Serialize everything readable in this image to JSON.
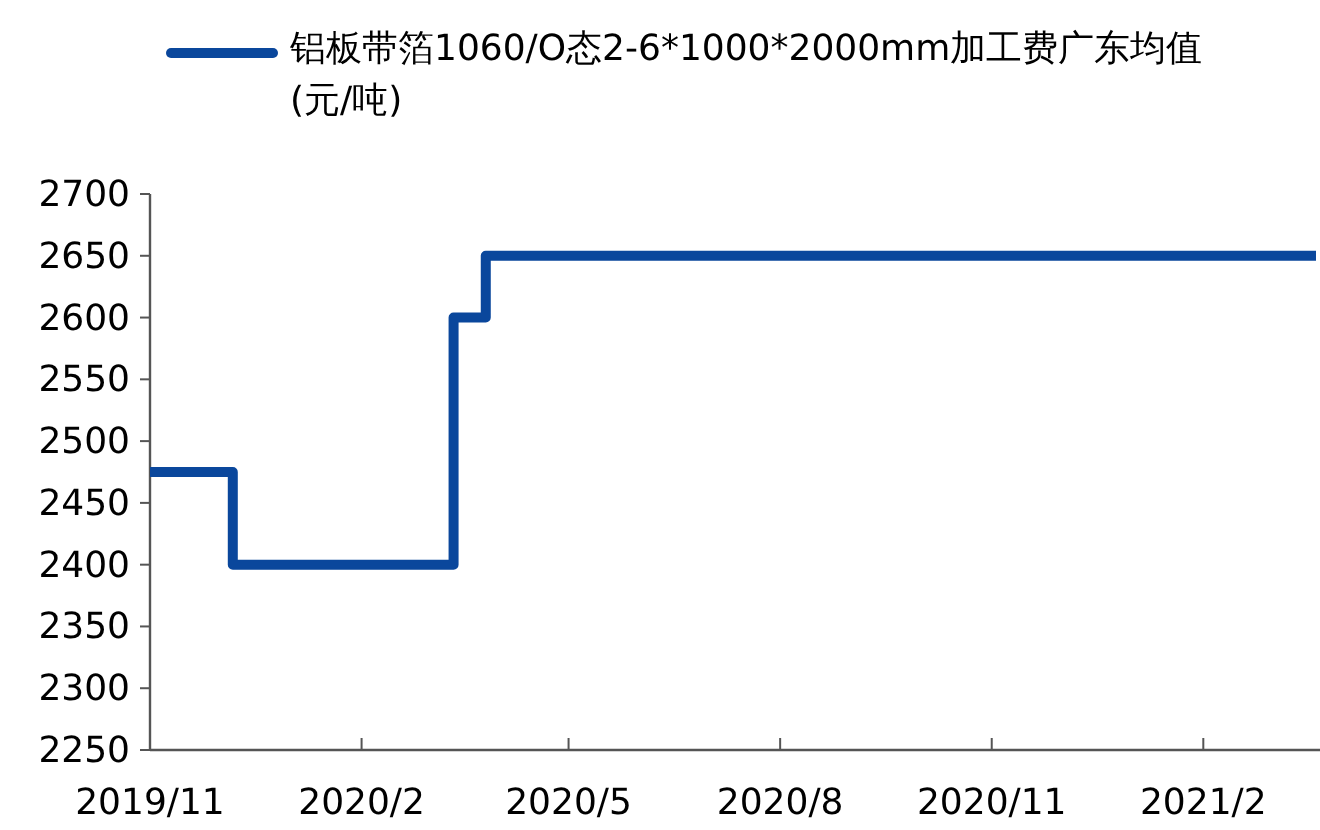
{
  "chart_data": {
    "type": "step",
    "legend": "top",
    "grid": false,
    "xlim": [
      "2019-11-01",
      "2021-03-22"
    ],
    "xticks": [
      {
        "value": "2019-11",
        "label": "2019/11"
      },
      {
        "value": "2020-02",
        "label": "2020/2"
      },
      {
        "value": "2020-05",
        "label": "2020/5"
      },
      {
        "value": "2020-08",
        "label": "2020/8"
      },
      {
        "value": "2020-11",
        "label": "2020/11"
      },
      {
        "value": "2021-02",
        "label": "2021/2"
      }
    ],
    "ylim": [
      2250,
      2700
    ],
    "yticks": [
      2250,
      2300,
      2350,
      2400,
      2450,
      2500,
      2550,
      2600,
      2650,
      2700
    ],
    "series": [
      {
        "name": "铝板带箔1060/O态2-6*1000*2000mm加工费广东均值(元/吨)",
        "color": "#0a479c",
        "x": [
          "2019-11-01",
          "2019-12-07",
          "2020-03-12",
          "2020-03-26",
          "2021-03-22"
        ],
        "values": [
          2475,
          2400,
          2600,
          2650,
          2650
        ]
      }
    ]
  }
}
